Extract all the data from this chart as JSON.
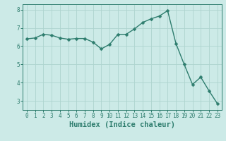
{
  "xlabel": "Humidex (Indice chaleur)",
  "ylabel": "",
  "background_color": "#cceae7",
  "line_color": "#2e7d6e",
  "marker_color": "#2e7d6e",
  "grid_color": "#aed4cf",
  "x_values": [
    0,
    1,
    2,
    3,
    4,
    5,
    6,
    7,
    8,
    9,
    10,
    11,
    12,
    13,
    14,
    15,
    16,
    17,
    18,
    19,
    20,
    21,
    22,
    23
  ],
  "y_values": [
    6.4,
    6.45,
    6.65,
    6.6,
    6.45,
    6.38,
    6.42,
    6.42,
    6.22,
    5.85,
    6.1,
    6.65,
    6.65,
    6.95,
    7.3,
    7.5,
    7.65,
    7.95,
    6.15,
    5.0,
    3.9,
    4.3,
    3.55,
    2.85
  ],
  "ylim": [
    2.5,
    8.3
  ],
  "xlim": [
    -0.5,
    23.5
  ],
  "yticks": [
    3,
    4,
    5,
    6,
    7,
    8
  ],
  "xticks": [
    0,
    1,
    2,
    3,
    4,
    5,
    6,
    7,
    8,
    9,
    10,
    11,
    12,
    13,
    14,
    15,
    16,
    17,
    18,
    19,
    20,
    21,
    22,
    23
  ],
  "tick_fontsize": 5.5,
  "xlabel_fontsize": 7.5,
  "marker_size": 2.5,
  "line_width": 1.0
}
